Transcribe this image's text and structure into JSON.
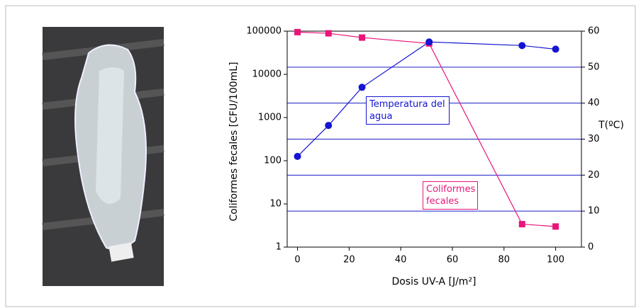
{
  "chart_data": {
    "type": "line",
    "x_label": "Dosis UV-A [J/m²]",
    "y_label": "Coliformes fecales [CFU/100mL]",
    "y2_label": "T(ºC)",
    "xlim": [
      -4,
      110
    ],
    "xticks": [
      0,
      20,
      40,
      60,
      80,
      100
    ],
    "ylim": [
      1,
      100000
    ],
    "yticks": [
      1,
      10,
      100,
      1000,
      10000,
      100000
    ],
    "yscale": "log",
    "y2lim": [
      0,
      60
    ],
    "y2ticks": [
      0,
      10,
      20,
      30,
      40,
      50,
      60
    ],
    "grid": true,
    "grid_color": "#1c1cc8",
    "series": [
      {
        "name": "Coliformes fecales",
        "color": "#e8157a",
        "marker": "square",
        "x": [
          0,
          12,
          25,
          51,
          87,
          100
        ],
        "values": [
          95000,
          89000,
          71000,
          52000,
          3.4,
          3.0
        ]
      },
      {
        "name": "Temperatura del agua",
        "color": "#1414d2",
        "marker": "circle",
        "axis": "y2",
        "x": [
          0,
          12,
          25,
          51,
          87,
          100
        ],
        "values": [
          25.2,
          33.8,
          44.4,
          57,
          56,
          55
        ]
      }
    ]
  }
}
